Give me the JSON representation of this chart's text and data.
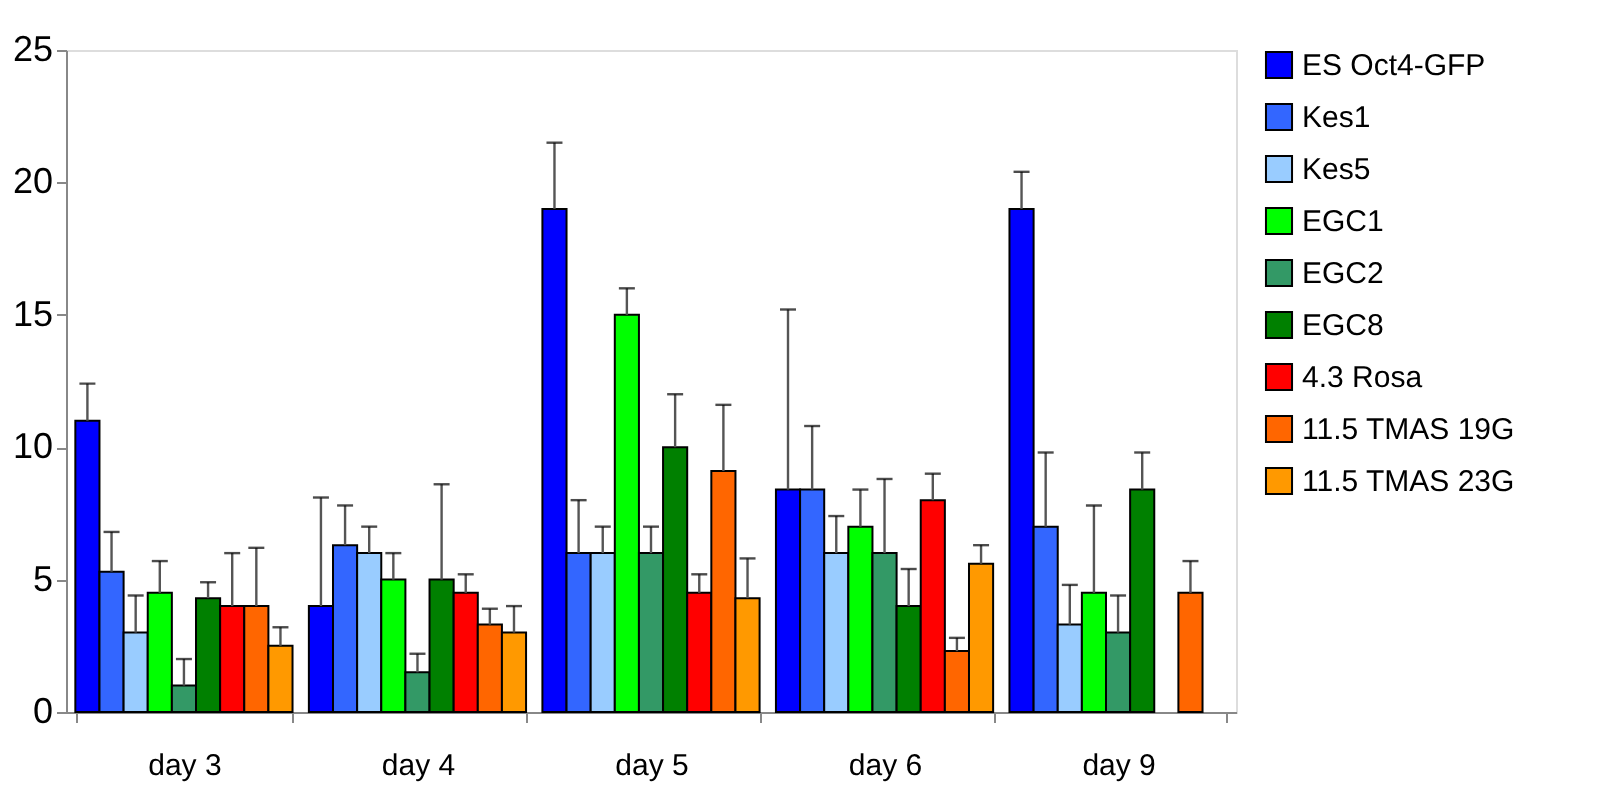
{
  "chart_data": {
    "type": "bar",
    "categories": [
      "day 3",
      "day 4",
      "day 5",
      "day 6",
      "day 9"
    ],
    "series": [
      {
        "name": "ES Oct4-GFP",
        "color": "#0000ff",
        "values": [
          11.0,
          4.0,
          19.0,
          8.4,
          19.0
        ],
        "errors": [
          [
            11.0,
            12.4
          ],
          [
            4.0,
            8.1
          ],
          [
            19.0,
            21.5
          ],
          [
            8.4,
            15.2
          ],
          [
            19.0,
            20.4
          ]
        ]
      },
      {
        "name": "Kes1",
        "color": "#3366ff",
        "values": [
          5.3,
          6.3,
          6.0,
          8.4,
          7.0
        ],
        "errors": [
          [
            5.3,
            6.8
          ],
          [
            6.3,
            7.8
          ],
          [
            6.0,
            8.0
          ],
          [
            8.4,
            10.8
          ],
          [
            7.0,
            9.8
          ]
        ]
      },
      {
        "name": "Kes5",
        "color": "#99ccff",
        "values": [
          3.0,
          6.0,
          6.0,
          6.0,
          3.3
        ],
        "errors": [
          [
            3.0,
            4.4
          ],
          [
            6.0,
            7.0
          ],
          [
            6.0,
            7.0
          ],
          [
            6.0,
            7.4
          ],
          [
            3.3,
            4.8
          ]
        ]
      },
      {
        "name": "EGC1",
        "color": "#00ff00",
        "values": [
          4.5,
          5.0,
          15.0,
          7.0,
          4.5
        ],
        "errors": [
          [
            4.5,
            5.7
          ],
          [
            5.0,
            6.0
          ],
          [
            15.0,
            16.0
          ],
          [
            7.0,
            8.4
          ],
          [
            4.5,
            7.8
          ]
        ]
      },
      {
        "name": "EGC2",
        "color": "#339966",
        "values": [
          1.0,
          1.5,
          6.0,
          6.0,
          3.0
        ],
        "errors": [
          [
            1.0,
            2.0
          ],
          [
            1.5,
            2.2
          ],
          [
            6.0,
            7.0
          ],
          [
            6.0,
            8.8
          ],
          [
            3.0,
            4.4
          ]
        ]
      },
      {
        "name": "EGC8",
        "color": "#008000",
        "values": [
          4.3,
          5.0,
          10.0,
          4.0,
          8.4
        ],
        "errors": [
          [
            4.3,
            4.9
          ],
          [
            5.0,
            8.6
          ],
          [
            10.0,
            12.0
          ],
          [
            4.0,
            5.4
          ],
          [
            8.4,
            9.8
          ]
        ]
      },
      {
        "name": "4.3 Rosa",
        "color": "#ff0000",
        "values": [
          4.0,
          4.5,
          4.5,
          8.0,
          null
        ],
        "errors": [
          [
            4.0,
            6.0
          ],
          [
            4.5,
            5.2
          ],
          [
            4.5,
            5.2
          ],
          [
            8.0,
            9.0
          ],
          null
        ]
      },
      {
        "name": "11.5 TMAS 19G",
        "color": "#ff6600",
        "values": [
          4.0,
          3.3,
          9.1,
          2.3,
          4.5
        ],
        "errors": [
          [
            4.0,
            6.2
          ],
          [
            3.3,
            3.9
          ],
          [
            9.1,
            11.6
          ],
          [
            2.3,
            2.8
          ],
          [
            4.5,
            5.7
          ]
        ]
      },
      {
        "name": "11.5 TMAS 23G",
        "color": "#ff9900",
        "values": [
          2.5,
          3.0,
          4.3,
          5.6,
          null
        ],
        "errors": [
          [
            2.5,
            3.2
          ],
          [
            3.0,
            4.0
          ],
          [
            4.3,
            5.8
          ],
          [
            5.6,
            6.3
          ],
          null
        ]
      }
    ],
    "ylim": [
      0,
      25
    ],
    "yticks": [
      0,
      5,
      10,
      15,
      20,
      25
    ],
    "grid": false,
    "legend": "right"
  }
}
